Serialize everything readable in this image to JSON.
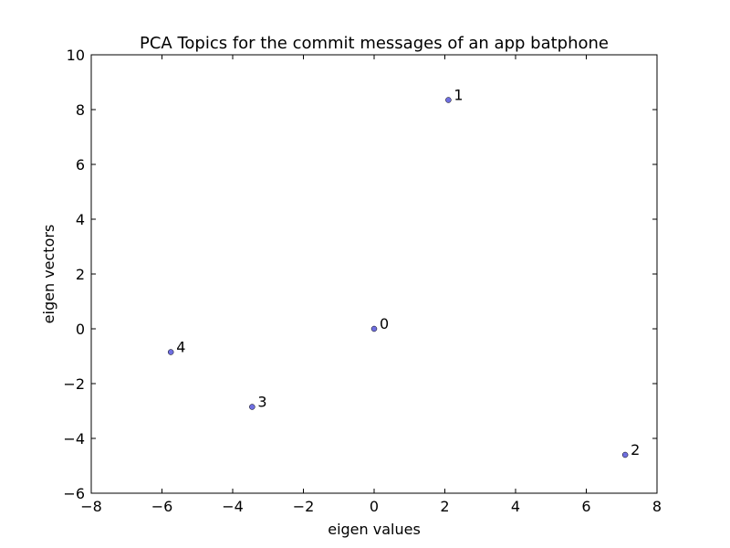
{
  "chart_data": {
    "type": "scatter",
    "title": "PCA Topics for the commit messages of an app batphone",
    "xlabel": "eigen values",
    "ylabel": "eigen vectors",
    "xlim": [
      -8,
      8
    ],
    "ylim": [
      -6,
      10
    ],
    "xticks": [
      -8,
      -6,
      -4,
      -2,
      0,
      2,
      4,
      6,
      8
    ],
    "yticks": [
      -6,
      -4,
      -2,
      0,
      2,
      4,
      6,
      8,
      10
    ],
    "xtick_labels": [
      "−8",
      "−6",
      "−4",
      "−2",
      "0",
      "2",
      "4",
      "6",
      "8"
    ],
    "ytick_labels": [
      "−6",
      "−4",
      "−2",
      "0",
      "2",
      "4",
      "6",
      "8",
      "10"
    ],
    "grid": false,
    "marker_color": "#6f6fe0",
    "marker_edge_color": "#000000",
    "points": [
      {
        "label": "0",
        "x": 0.0,
        "y": 0.0
      },
      {
        "label": "1",
        "x": 2.1,
        "y": 8.35
      },
      {
        "label": "2",
        "x": 7.1,
        "y": -4.6
      },
      {
        "label": "3",
        "x": -3.45,
        "y": -2.85
      },
      {
        "label": "4",
        "x": -5.75,
        "y": -0.85
      }
    ]
  }
}
